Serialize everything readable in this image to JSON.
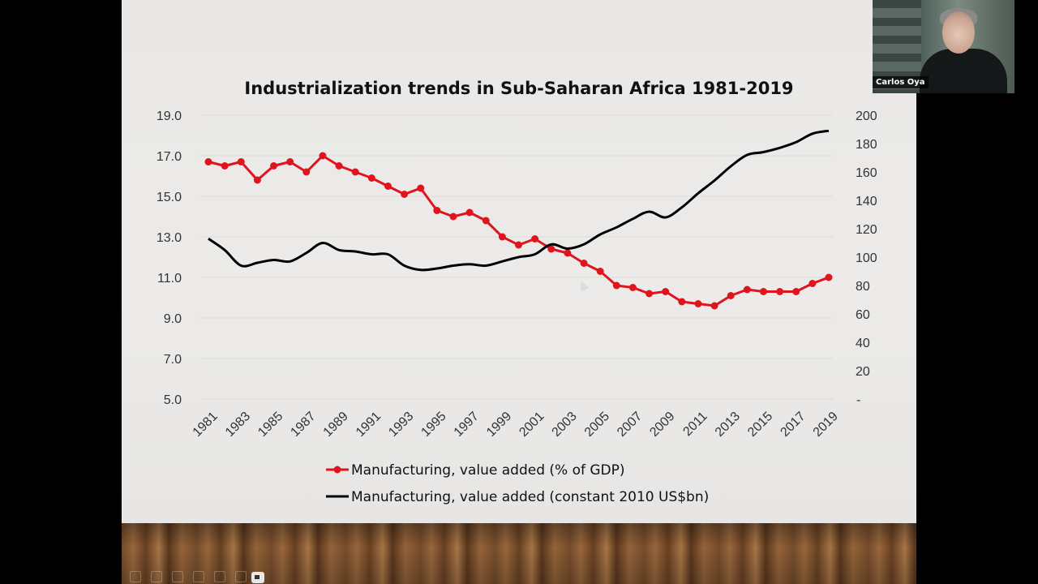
{
  "slide": {
    "title": "Industrialization trends in Sub-Saharan Africa 1981-2019"
  },
  "participant": {
    "name": "Carlos Oya"
  },
  "chart_data": {
    "type": "line",
    "title": "Industrialization trends in Sub-Saharan Africa 1981-2019",
    "x": [
      1981,
      1982,
      1983,
      1984,
      1985,
      1986,
      1987,
      1988,
      1989,
      1990,
      1991,
      1992,
      1993,
      1994,
      1995,
      1996,
      1997,
      1998,
      1999,
      2000,
      2001,
      2002,
      2003,
      2004,
      2005,
      2006,
      2007,
      2008,
      2009,
      2010,
      2011,
      2012,
      2013,
      2014,
      2015,
      2016,
      2017,
      2018,
      2019
    ],
    "x_tick_labels": [
      "1981",
      "1983",
      "1985",
      "1987",
      "1989",
      "1991",
      "1993",
      "1995",
      "1997",
      "1999",
      "2001",
      "2003",
      "2005",
      "2007",
      "2009",
      "2011",
      "2013",
      "2015",
      "2017",
      "2019"
    ],
    "y_left": {
      "range": [
        5.0,
        19.0
      ],
      "tick_labels": [
        "19.0",
        "17.0",
        "15.0",
        "13.0",
        "11.0",
        "9.0",
        "7.0",
        "5.0"
      ]
    },
    "y_right": {
      "range": [
        0,
        200
      ],
      "tick_labels": [
        "200",
        "180",
        "160",
        "140",
        "120",
        "100",
        "80",
        "60",
        "40",
        "20",
        "-"
      ]
    },
    "series": [
      {
        "name": "Manufacturing, value added (% of GDP)",
        "axis": "left",
        "color": "#e0141e",
        "markers": true,
        "values": [
          16.7,
          16.5,
          16.7,
          15.8,
          16.5,
          16.7,
          16.2,
          17.0,
          16.5,
          16.2,
          15.9,
          15.5,
          15.1,
          15.4,
          14.3,
          14.0,
          14.2,
          13.8,
          13.0,
          12.6,
          12.9,
          12.4,
          12.2,
          11.7,
          11.3,
          10.6,
          10.5,
          10.2,
          10.3,
          9.8,
          9.7,
          9.6,
          10.1,
          10.4,
          10.3,
          10.3,
          10.3,
          10.7,
          11.0
        ]
      },
      {
        "name": "Manufacturing, value added (constant 2010 US$bn)",
        "axis": "right",
        "color": "#000000",
        "markers": false,
        "values": [
          113,
          105,
          94,
          96,
          98,
          97,
          103,
          110,
          105,
          104,
          102,
          102,
          94,
          91,
          92,
          94,
          95,
          94,
          97,
          100,
          102,
          109,
          106,
          109,
          116,
          121,
          127,
          132,
          128,
          135,
          145,
          154,
          164,
          172,
          174,
          177,
          181,
          187,
          189
        ]
      }
    ],
    "legend_position": "bottom-center",
    "grid": true
  }
}
